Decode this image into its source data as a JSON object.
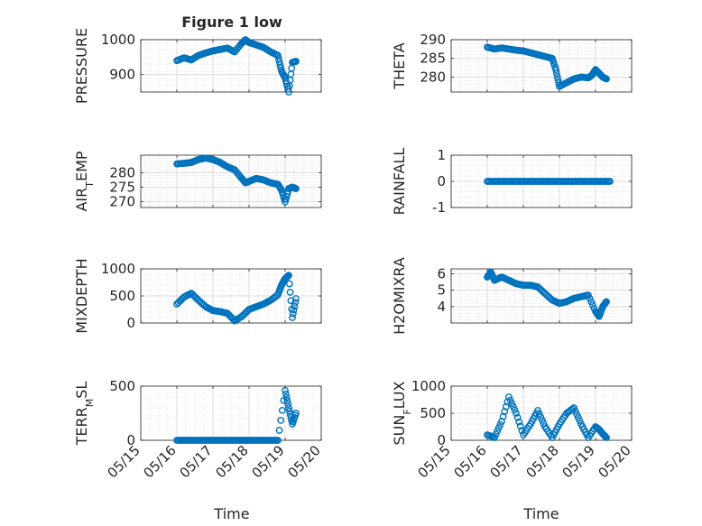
{
  "figure": {
    "title": "Figure 1 low",
    "xlabel": "Time",
    "marker_color": "#0072bd"
  },
  "chart_data": [
    {
      "type": "scatter",
      "ylabel_main": "PRESSURE",
      "ylabel_sub": "",
      "ylim": [
        850,
        1000
      ],
      "yticks": [
        900,
        1000
      ],
      "ytick_labels": [
        "900",
        "1000"
      ],
      "xlim": [
        0,
        5
      ],
      "xticks": [
        0,
        1,
        2,
        3,
        4,
        5
      ],
      "xtick_labels": [
        "05/15",
        "05/16",
        "05/17",
        "05/18",
        "05/19",
        "05/20"
      ],
      "show_xticklabels": false,
      "x": [
        1.0,
        1.2,
        1.4,
        1.6,
        1.8,
        2.0,
        2.2,
        2.4,
        2.6,
        2.8,
        2.9,
        3.0,
        3.2,
        3.4,
        3.6,
        3.8,
        3.9,
        4.0,
        4.1,
        4.2,
        4.3
      ],
      "y": [
        940,
        948,
        942,
        955,
        962,
        968,
        972,
        976,
        965,
        990,
        1000,
        992,
        985,
        978,
        965,
        955,
        910,
        890,
        850,
        935,
        938
      ]
    },
    {
      "type": "scatter",
      "ylabel_main": "THETA",
      "ylabel_sub": "",
      "ylim": [
        276,
        290
      ],
      "yticks": [
        280,
        285,
        290
      ],
      "ytick_labels": [
        "280",
        "285",
        "290"
      ],
      "xlim": [
        0,
        5
      ],
      "xticks": [
        0,
        1,
        2,
        3,
        4,
        5
      ],
      "xtick_labels": [
        "05/15",
        "05/16",
        "05/17",
        "05/18",
        "05/19",
        "05/20"
      ],
      "show_xticklabels": false,
      "x": [
        1.0,
        1.2,
        1.4,
        1.6,
        1.8,
        2.0,
        2.2,
        2.4,
        2.6,
        2.8,
        2.9,
        3.0,
        3.2,
        3.4,
        3.6,
        3.8,
        3.9,
        4.0,
        4.1,
        4.2,
        4.3
      ],
      "y": [
        288,
        287.5,
        287.8,
        287.5,
        287.2,
        287.0,
        286.5,
        286.0,
        285.5,
        285.0,
        282.0,
        277.5,
        278.5,
        279.5,
        280.0,
        279.8,
        280.5,
        282.0,
        281.0,
        280.0,
        279.5
      ]
    },
    {
      "type": "scatter",
      "ylabel_main": "AIR",
      "ylabel_sub": "T",
      "ylabel_tail": "EMP",
      "ylim": [
        268,
        286
      ],
      "yticks": [
        270,
        275,
        280
      ],
      "ytick_labels": [
        "270",
        "275",
        "280"
      ],
      "xlim": [
        0,
        5
      ],
      "xticks": [
        0,
        1,
        2,
        3,
        4,
        5
      ],
      "xtick_labels": [
        "05/15",
        "05/16",
        "05/17",
        "05/18",
        "05/19",
        "05/20"
      ],
      "show_xticklabels": false,
      "x": [
        1.0,
        1.2,
        1.4,
        1.6,
        1.8,
        2.0,
        2.2,
        2.4,
        2.6,
        2.8,
        2.9,
        3.0,
        3.2,
        3.4,
        3.6,
        3.8,
        3.9,
        4.0,
        4.1,
        4.2,
        4.3
      ],
      "y": [
        283,
        283.2,
        283.5,
        284.5,
        285,
        284.5,
        283.5,
        282,
        281,
        278,
        276.5,
        277,
        278,
        277.5,
        276.5,
        276,
        274,
        270,
        274.5,
        275,
        274.5
      ]
    },
    {
      "type": "scatter",
      "ylabel_main": "RAINFALL",
      "ylabel_sub": "",
      "ylim": [
        -1,
        1
      ],
      "yticks": [
        -1,
        0,
        1
      ],
      "ytick_labels": [
        "-1",
        "0",
        "1"
      ],
      "xlim": [
        0,
        5
      ],
      "xticks": [
        0,
        1,
        2,
        3,
        4,
        5
      ],
      "xtick_labels": [
        "05/15",
        "05/16",
        "05/17",
        "05/18",
        "05/19",
        "05/20"
      ],
      "show_xticklabels": false,
      "x": [
        1.0,
        1.2,
        1.4,
        1.6,
        1.8,
        2.0,
        2.2,
        2.4,
        2.6,
        2.8,
        3.0,
        3.2,
        3.4,
        3.6,
        3.8,
        4.0,
        4.2,
        4.4
      ],
      "y": [
        0,
        0,
        0,
        0,
        0,
        0,
        0,
        0,
        0,
        0,
        0,
        0,
        0,
        0,
        0,
        0,
        0,
        0
      ]
    },
    {
      "type": "scatter",
      "ylabel_main": "MIXDEPTH",
      "ylabel_sub": "",
      "ylim": [
        0,
        1000
      ],
      "yticks": [
        0,
        500,
        1000
      ],
      "ytick_labels": [
        "0",
        "500",
        "1000"
      ],
      "xlim": [
        0,
        5
      ],
      "xticks": [
        0,
        1,
        2,
        3,
        4,
        5
      ],
      "xtick_labels": [
        "05/15",
        "05/16",
        "05/17",
        "05/18",
        "05/19",
        "05/20"
      ],
      "show_xticklabels": false,
      "x": [
        1.0,
        1.2,
        1.4,
        1.6,
        1.8,
        2.0,
        2.2,
        2.4,
        2.6,
        2.8,
        3.0,
        3.2,
        3.4,
        3.6,
        3.8,
        3.9,
        4.0,
        4.1,
        4.2,
        4.3
      ],
      "y": [
        350,
        480,
        550,
        420,
        300,
        230,
        210,
        180,
        40,
        120,
        250,
        300,
        350,
        420,
        520,
        700,
        820,
        880,
        100,
        450
      ]
    },
    {
      "type": "scatter",
      "ylabel_main": "H2OMIXRA",
      "ylabel_sub": "",
      "ylim": [
        3,
        6.3
      ],
      "yticks": [
        4,
        5,
        6
      ],
      "ytick_labels": [
        "4",
        "5",
        "6"
      ],
      "xlim": [
        0,
        5
      ],
      "xticks": [
        0,
        1,
        2,
        3,
        4,
        5
      ],
      "xtick_labels": [
        "05/15",
        "05/16",
        "05/17",
        "05/18",
        "05/19",
        "05/20"
      ],
      "show_xticklabels": false,
      "x": [
        1.0,
        1.1,
        1.2,
        1.4,
        1.6,
        1.8,
        2.0,
        2.2,
        2.4,
        2.6,
        2.8,
        3.0,
        3.2,
        3.4,
        3.6,
        3.8,
        4.0,
        4.1,
        4.2,
        4.3
      ],
      "y": [
        5.8,
        6.1,
        5.6,
        5.8,
        5.6,
        5.4,
        5.3,
        5.3,
        5.2,
        4.8,
        4.4,
        4.2,
        4.3,
        4.5,
        4.6,
        4.7,
        3.7,
        3.4,
        4.0,
        4.3
      ]
    },
    {
      "type": "scatter",
      "ylabel_main": "TERR",
      "ylabel_sub": "M",
      "ylabel_tail": "SL",
      "ylim": [
        0,
        500
      ],
      "yticks": [
        0,
        500
      ],
      "ytick_labels": [
        "0",
        "500"
      ],
      "xlim": [
        0,
        5
      ],
      "xticks": [
        0,
        1,
        2,
        3,
        4,
        5
      ],
      "xtick_labels": [
        "05/15",
        "05/16",
        "05/17",
        "05/18",
        "05/19",
        "05/20"
      ],
      "show_xticklabels": true,
      "x": [
        1.0,
        1.2,
        1.4,
        1.6,
        1.8,
        2.0,
        2.2,
        2.4,
        2.6,
        2.8,
        3.0,
        3.2,
        3.4,
        3.6,
        3.8,
        4.0,
        4.1,
        4.2,
        4.3
      ],
      "y": [
        0,
        0,
        0,
        0,
        0,
        0,
        0,
        0,
        0,
        0,
        0,
        0,
        0,
        0,
        0,
        460,
        300,
        150,
        250
      ]
    },
    {
      "type": "scatter",
      "ylabel_main": "SUN",
      "ylabel_sub": "F",
      "ylabel_tail": "LUX",
      "ylim": [
        0,
        1000
      ],
      "yticks": [
        0,
        500,
        1000
      ],
      "ytick_labels": [
        "0",
        "500",
        "1000"
      ],
      "xlim": [
        0,
        5
      ],
      "xticks": [
        0,
        1,
        2,
        3,
        4,
        5
      ],
      "xtick_labels": [
        "05/15",
        "05/16",
        "05/17",
        "05/18",
        "05/19",
        "05/20"
      ],
      "show_xticklabels": true,
      "x": [
        1.0,
        1.2,
        1.4,
        1.6,
        1.8,
        2.0,
        2.2,
        2.4,
        2.6,
        2.8,
        3.0,
        3.2,
        3.4,
        3.6,
        3.8,
        4.0,
        4.1,
        4.2,
        4.3
      ],
      "y": [
        100,
        50,
        350,
        800,
        500,
        100,
        300,
        550,
        250,
        50,
        300,
        500,
        600,
        300,
        50,
        250,
        200,
        120,
        50
      ]
    }
  ]
}
